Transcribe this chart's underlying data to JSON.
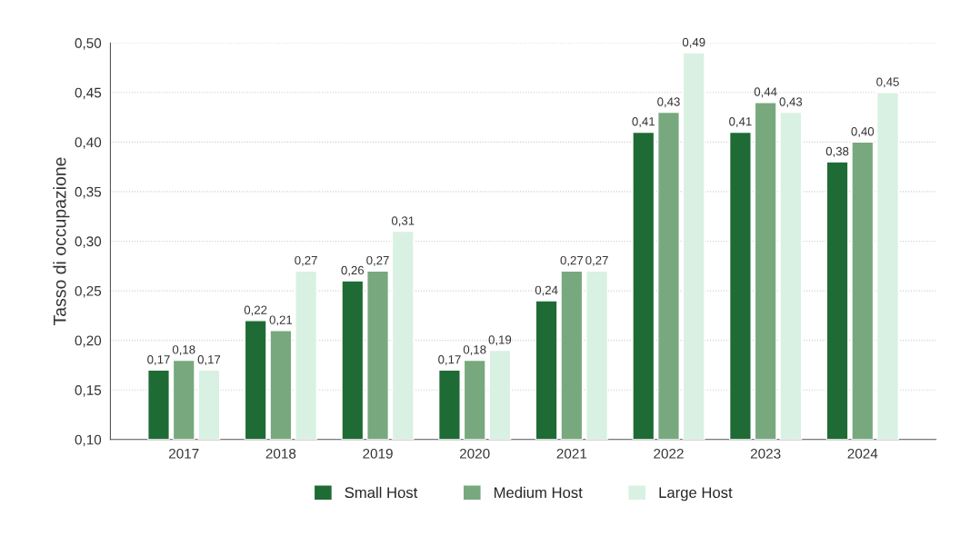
{
  "chart_data": {
    "type": "bar",
    "ylabel": "Tasso di occupazione",
    "categories": [
      "2017",
      "2018",
      "2019",
      "2020",
      "2021",
      "2022",
      "2023",
      "2024"
    ],
    "series": [
      {
        "name": "Small Host",
        "color": "#1f6b35",
        "values": [
          0.17,
          0.22,
          0.26,
          0.17,
          0.24,
          0.41,
          0.41,
          0.38
        ],
        "value_labels": [
          "0,17",
          "0,22",
          "0,26",
          "0,17",
          "0,24",
          "0,41",
          "0,41",
          "0,38"
        ]
      },
      {
        "name": "Medium Host",
        "color": "#78a97e",
        "values": [
          0.18,
          0.21,
          0.27,
          0.18,
          0.27,
          0.43,
          0.44,
          0.4
        ],
        "value_labels": [
          "0,18",
          "0,21",
          "0,27",
          "0,18",
          "0,27",
          "0,43",
          "0,44",
          "0,40"
        ]
      },
      {
        "name": "Large Host",
        "color": "#d8f1e2",
        "values": [
          0.17,
          0.27,
          0.31,
          0.19,
          0.27,
          0.49,
          0.43,
          0.45
        ],
        "value_labels": [
          "0,17",
          "0,27",
          "0,31",
          "0,19",
          "0,27",
          "0,49",
          "0,43",
          "0,45"
        ]
      }
    ],
    "ylim": [
      0.1,
      0.5
    ],
    "yticks": [
      {
        "value": 0.1,
        "label": "0,10"
      },
      {
        "value": 0.15,
        "label": "0,15"
      },
      {
        "value": 0.2,
        "label": "0,20"
      },
      {
        "value": 0.25,
        "label": "0,25"
      },
      {
        "value": 0.3,
        "label": "0,30"
      },
      {
        "value": 0.35,
        "label": "0,35"
      },
      {
        "value": 0.4,
        "label": "0,40"
      },
      {
        "value": 0.45,
        "label": "0,45"
      },
      {
        "value": 0.5,
        "label": "0,50"
      }
    ],
    "grid": "y",
    "legend": "bottom"
  }
}
